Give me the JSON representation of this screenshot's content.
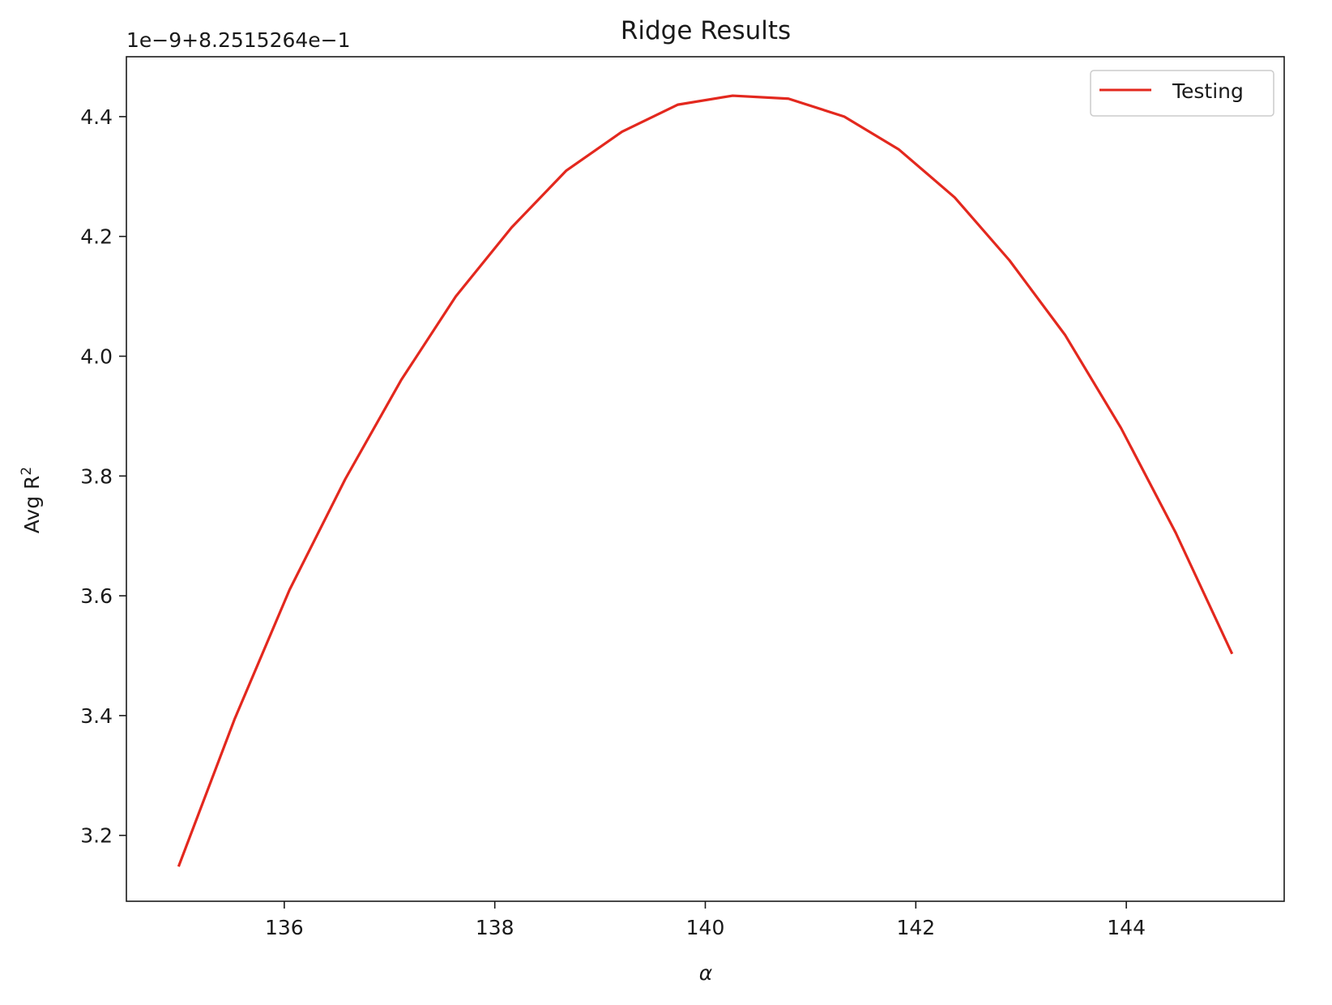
{
  "chart_data": {
    "type": "line",
    "title": "Ridge Results",
    "xlabel": "α",
    "ylabel": "Avg R",
    "ylabel_sup": "2",
    "y_offset_label": "1e−9+8.2515264e−1",
    "xlim": [
      134.5,
      145.5
    ],
    "ylim": [
      3.09,
      4.5
    ],
    "x_ticks": [
      136,
      138,
      140,
      142,
      144
    ],
    "y_ticks": [
      3.2,
      3.4,
      3.6,
      3.8,
      4.0,
      4.2,
      4.4
    ],
    "x_tick_labels": [
      "136",
      "138",
      "140",
      "142",
      "144"
    ],
    "y_tick_labels": [
      "3.2",
      "3.4",
      "3.6",
      "3.8",
      "4.0",
      "4.2",
      "4.4"
    ],
    "grid": false,
    "legend_position": "upper right",
    "series": [
      {
        "name": "Testing",
        "color": "#e3281e",
        "x": [
          135.0,
          135.53,
          136.05,
          136.58,
          137.11,
          137.63,
          138.16,
          138.68,
          139.21,
          139.74,
          140.26,
          140.79,
          141.32,
          141.84,
          142.37,
          142.89,
          143.42,
          143.95,
          144.47,
          145.0
        ],
        "y": [
          3.15,
          3.395,
          3.61,
          3.795,
          3.96,
          4.1,
          4.215,
          4.31,
          4.375,
          4.42,
          4.435,
          4.43,
          4.4,
          4.345,
          4.265,
          4.16,
          4.035,
          3.88,
          3.705,
          3.505
        ]
      }
    ]
  }
}
